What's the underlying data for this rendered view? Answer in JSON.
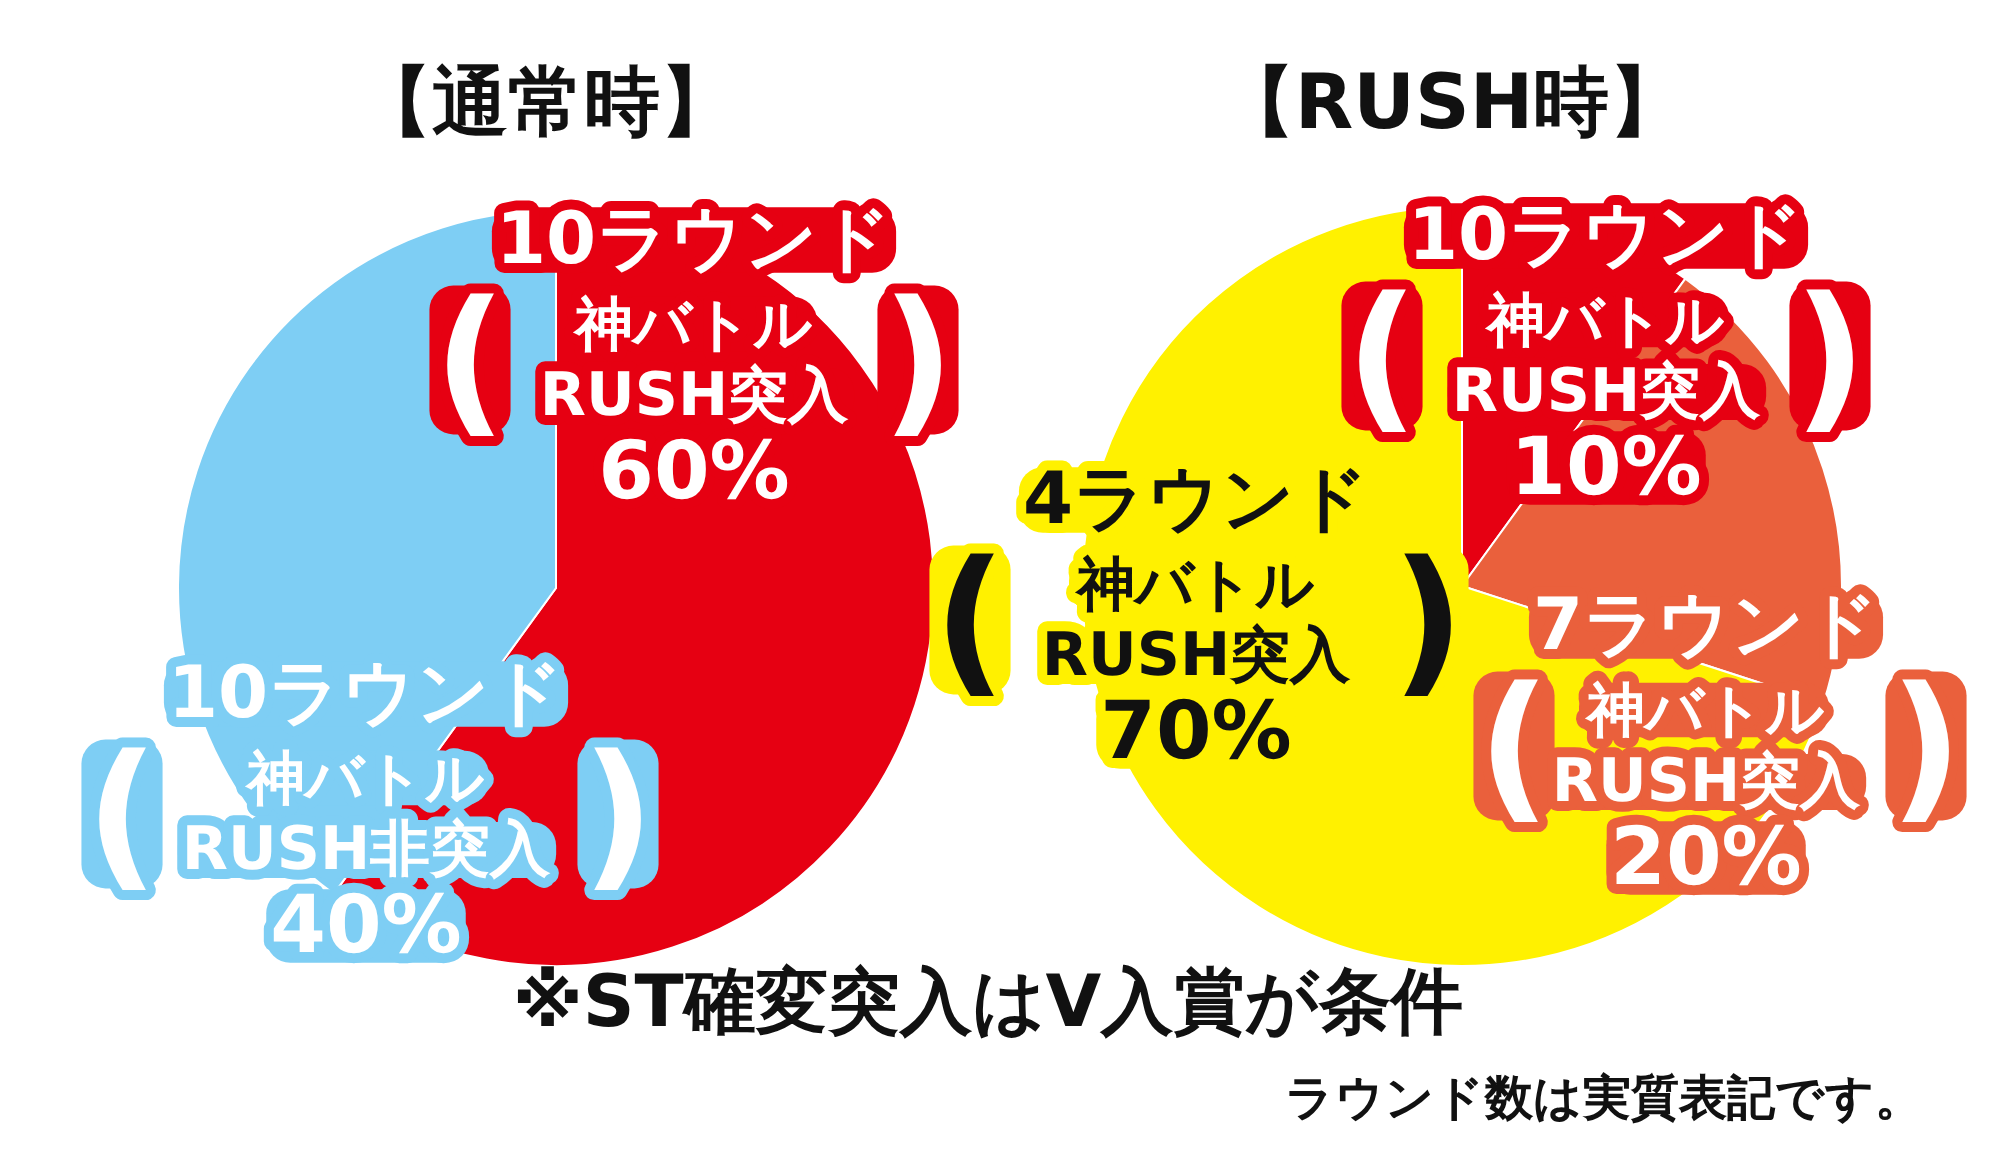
{
  "chart_data": [
    {
      "type": "pie",
      "title": "【通常時】",
      "categories": [
        "10ラウンド\n(\n神バトル\nRUSH突入\n)",
        "10ラウンド\n(\n神バトル\nRUSH非突入\n)"
      ],
      "values": [
        60,
        40
      ],
      "colors": [
        "#e60012",
        "#7ecef4"
      ],
      "value_labels": [
        "60%",
        "40%"
      ]
    },
    {
      "type": "pie",
      "title": "【RUSH時】",
      "categories": [
        "10ラウンド\n(\n神バトル\nRUSH突入\n)",
        "7ラウンド\n(\n神バトル\nRUSH突入\n)",
        "4ラウンド\n(\n神バトル\nRUSH突入\n)"
      ],
      "values": [
        10,
        20,
        70
      ],
      "colors": [
        "#e60012",
        "#ea603c",
        "#fff100"
      ],
      "value_labels": [
        "10%",
        "20%",
        "70%"
      ],
      "annotations": [
        "※ST確変突入はV入賞が条件",
        "ラウンド数は実質表記です。"
      ]
    }
  ]
}
